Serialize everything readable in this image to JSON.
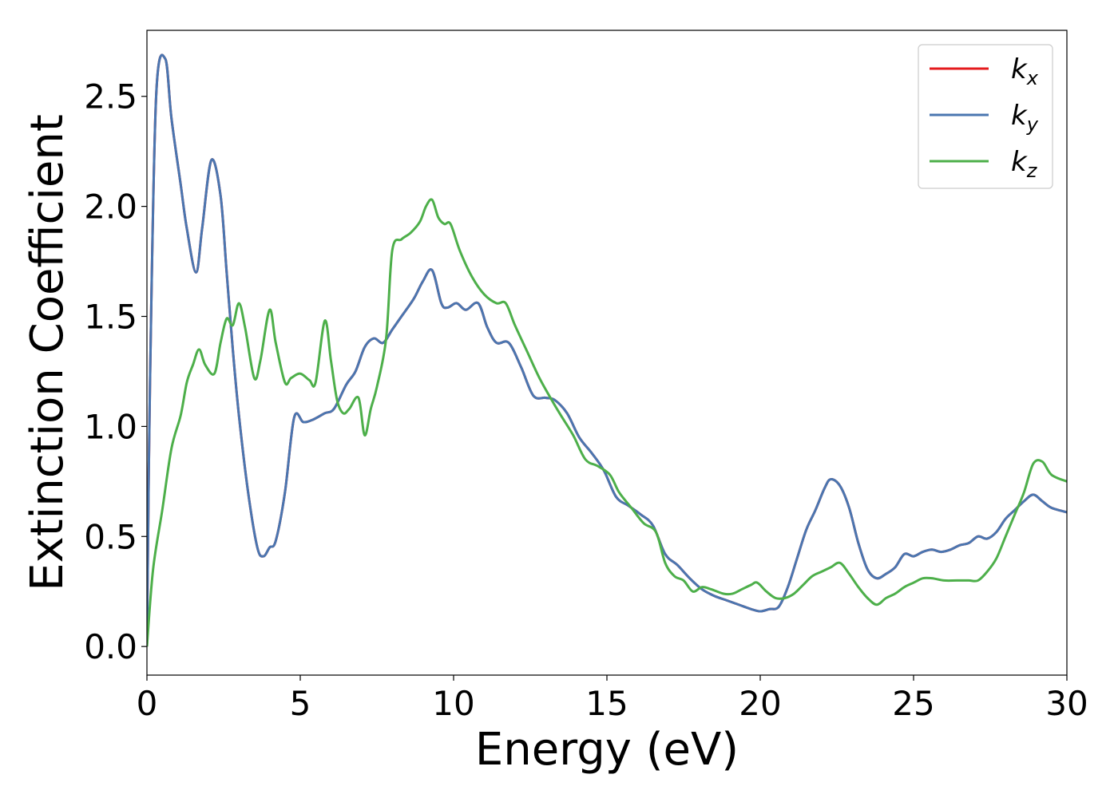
{
  "chart_data": {
    "type": "line",
    "xlabel": "Energy (eV)",
    "ylabel": "Extinction Coefficient",
    "xlim": [
      0,
      30
    ],
    "ylim": [
      -0.13,
      2.8
    ],
    "xticks": [
      0,
      5,
      10,
      15,
      20,
      25,
      30
    ],
    "xtick_labels": [
      "0",
      "5",
      "10",
      "15",
      "20",
      "25",
      "30"
    ],
    "yticks": [
      0.0,
      0.5,
      1.0,
      1.5,
      2.0,
      2.5
    ],
    "ytick_labels": [
      "0.0",
      "0.5",
      "1.0",
      "1.5",
      "2.0",
      "2.5"
    ],
    "grid": false,
    "legend_position": "top-right",
    "series": [
      {
        "name": "k",
        "subscript": "x",
        "color": "#e41a1c",
        "x": [
          0,
          0.1,
          0.3,
          0.6,
          0.8,
          1.1,
          1.3,
          1.6,
          1.8,
          2.1,
          2.4,
          2.6,
          2.8,
          3.0,
          3.3,
          3.6,
          3.8,
          4.0,
          4.2,
          4.5,
          4.8,
          5.1,
          5.4,
          5.8,
          6.1,
          6.5,
          6.8,
          7.1,
          7.4,
          7.7,
          8.0,
          8.3,
          8.7,
          9.0,
          9.3,
          9.6,
          9.8,
          10.1,
          10.4,
          10.8,
          11.1,
          11.4,
          11.8,
          12.2,
          12.6,
          13.0,
          13.3,
          13.7,
          14.1,
          14.5,
          14.9,
          15.3,
          15.7,
          16.1,
          16.5,
          16.9,
          17.3,
          17.7,
          18.1,
          18.5,
          18.9,
          19.3,
          19.7,
          20.0,
          20.3,
          20.6,
          20.9,
          21.2,
          21.5,
          21.8,
          22.1,
          22.3,
          22.6,
          22.9,
          23.2,
          23.5,
          23.8,
          24.1,
          24.4,
          24.7,
          25.0,
          25.3,
          25.6,
          25.9,
          26.2,
          26.5,
          26.8,
          27.1,
          27.4,
          27.7,
          28.0,
          28.3,
          28.6,
          28.9,
          29.2,
          29.5,
          30.0
        ],
        "y": [
          0,
          1.2,
          2.5,
          2.67,
          2.4,
          2.1,
          1.9,
          1.7,
          1.9,
          2.21,
          2.05,
          1.7,
          1.35,
          1.05,
          0.7,
          0.45,
          0.41,
          0.45,
          0.48,
          0.7,
          1.04,
          1.02,
          1.03,
          1.06,
          1.08,
          1.19,
          1.25,
          1.36,
          1.4,
          1.38,
          1.44,
          1.5,
          1.58,
          1.66,
          1.71,
          1.56,
          1.54,
          1.56,
          1.53,
          1.56,
          1.45,
          1.38,
          1.38,
          1.27,
          1.14,
          1.13,
          1.12,
          1.06,
          0.95,
          0.88,
          0.8,
          0.68,
          0.64,
          0.6,
          0.55,
          0.42,
          0.37,
          0.31,
          0.26,
          0.23,
          0.21,
          0.19,
          0.17,
          0.16,
          0.17,
          0.18,
          0.27,
          0.4,
          0.53,
          0.62,
          0.72,
          0.76,
          0.73,
          0.63,
          0.47,
          0.35,
          0.31,
          0.33,
          0.36,
          0.42,
          0.41,
          0.43,
          0.44,
          0.43,
          0.44,
          0.46,
          0.47,
          0.5,
          0.49,
          0.52,
          0.58,
          0.62,
          0.66,
          0.69,
          0.66,
          0.63,
          0.61
        ]
      },
      {
        "name": "k",
        "subscript": "y",
        "color": "#4a76b0",
        "x": [
          0,
          0.1,
          0.3,
          0.6,
          0.8,
          1.1,
          1.3,
          1.6,
          1.8,
          2.1,
          2.4,
          2.6,
          2.8,
          3.0,
          3.3,
          3.6,
          3.8,
          4.0,
          4.2,
          4.5,
          4.8,
          5.1,
          5.4,
          5.8,
          6.1,
          6.5,
          6.8,
          7.1,
          7.4,
          7.7,
          8.0,
          8.3,
          8.7,
          9.0,
          9.3,
          9.6,
          9.8,
          10.1,
          10.4,
          10.8,
          11.1,
          11.4,
          11.8,
          12.2,
          12.6,
          13.0,
          13.3,
          13.7,
          14.1,
          14.5,
          14.9,
          15.3,
          15.7,
          16.1,
          16.5,
          16.9,
          17.3,
          17.7,
          18.1,
          18.5,
          18.9,
          19.3,
          19.7,
          20.0,
          20.3,
          20.6,
          20.9,
          21.2,
          21.5,
          21.8,
          22.1,
          22.3,
          22.6,
          22.9,
          23.2,
          23.5,
          23.8,
          24.1,
          24.4,
          24.7,
          25.0,
          25.3,
          25.6,
          25.9,
          26.2,
          26.5,
          26.8,
          27.1,
          27.4,
          27.7,
          28.0,
          28.3,
          28.6,
          28.9,
          29.2,
          29.5,
          30.0
        ],
        "y": [
          0,
          1.2,
          2.5,
          2.67,
          2.4,
          2.1,
          1.9,
          1.7,
          1.9,
          2.21,
          2.05,
          1.7,
          1.35,
          1.05,
          0.7,
          0.45,
          0.41,
          0.45,
          0.48,
          0.7,
          1.04,
          1.02,
          1.03,
          1.06,
          1.08,
          1.19,
          1.25,
          1.36,
          1.4,
          1.38,
          1.44,
          1.5,
          1.58,
          1.66,
          1.71,
          1.56,
          1.54,
          1.56,
          1.53,
          1.56,
          1.45,
          1.38,
          1.38,
          1.27,
          1.14,
          1.13,
          1.12,
          1.06,
          0.95,
          0.88,
          0.8,
          0.68,
          0.64,
          0.6,
          0.55,
          0.42,
          0.37,
          0.31,
          0.26,
          0.23,
          0.21,
          0.19,
          0.17,
          0.16,
          0.17,
          0.18,
          0.27,
          0.4,
          0.53,
          0.62,
          0.72,
          0.76,
          0.73,
          0.63,
          0.47,
          0.35,
          0.31,
          0.33,
          0.36,
          0.42,
          0.41,
          0.43,
          0.44,
          0.43,
          0.44,
          0.46,
          0.47,
          0.5,
          0.49,
          0.52,
          0.58,
          0.62,
          0.66,
          0.69,
          0.66,
          0.63,
          0.61
        ]
      },
      {
        "name": "k",
        "subscript": "z",
        "color": "#4daf4a",
        "x": [
          0,
          0.2,
          0.5,
          0.8,
          1.1,
          1.3,
          1.5,
          1.7,
          1.9,
          2.2,
          2.4,
          2.6,
          2.8,
          3.0,
          3.2,
          3.5,
          3.7,
          4.0,
          4.2,
          4.5,
          4.7,
          5.0,
          5.3,
          5.5,
          5.8,
          6.0,
          6.2,
          6.4,
          6.6,
          6.9,
          7.1,
          7.3,
          7.5,
          7.8,
          8.0,
          8.3,
          8.6,
          8.9,
          9.1,
          9.3,
          9.5,
          9.7,
          9.9,
          10.2,
          10.6,
          11.0,
          11.4,
          11.7,
          12.0,
          12.4,
          12.8,
          13.2,
          13.5,
          13.9,
          14.3,
          14.7,
          15.1,
          15.4,
          15.8,
          16.2,
          16.6,
          16.9,
          17.2,
          17.5,
          17.8,
          18.1,
          18.4,
          18.8,
          19.1,
          19.4,
          19.7,
          19.9,
          20.2,
          20.5,
          20.8,
          21.1,
          21.4,
          21.7,
          22.0,
          22.3,
          22.6,
          22.9,
          23.2,
          23.5,
          23.8,
          24.1,
          24.4,
          24.7,
          25.0,
          25.3,
          25.6,
          26.0,
          26.4,
          26.8,
          27.1,
          27.4,
          27.7,
          28.0,
          28.3,
          28.6,
          28.9,
          29.2,
          29.5,
          30.0
        ],
        "y": [
          0,
          0.35,
          0.62,
          0.9,
          1.05,
          1.2,
          1.28,
          1.35,
          1.28,
          1.24,
          1.38,
          1.49,
          1.46,
          1.56,
          1.45,
          1.22,
          1.3,
          1.53,
          1.38,
          1.2,
          1.22,
          1.24,
          1.21,
          1.2,
          1.48,
          1.3,
          1.12,
          1.06,
          1.08,
          1.13,
          0.96,
          1.08,
          1.18,
          1.4,
          1.8,
          1.85,
          1.88,
          1.93,
          2.0,
          2.03,
          1.95,
          1.92,
          1.92,
          1.8,
          1.68,
          1.6,
          1.56,
          1.56,
          1.46,
          1.34,
          1.22,
          1.12,
          1.05,
          0.96,
          0.85,
          0.82,
          0.78,
          0.7,
          0.63,
          0.56,
          0.52,
          0.38,
          0.32,
          0.3,
          0.25,
          0.27,
          0.26,
          0.24,
          0.24,
          0.26,
          0.28,
          0.29,
          0.25,
          0.22,
          0.22,
          0.24,
          0.28,
          0.32,
          0.34,
          0.36,
          0.38,
          0.33,
          0.27,
          0.22,
          0.19,
          0.22,
          0.24,
          0.27,
          0.29,
          0.31,
          0.31,
          0.3,
          0.3,
          0.3,
          0.3,
          0.34,
          0.4,
          0.5,
          0.6,
          0.7,
          0.83,
          0.84,
          0.78,
          0.75
        ]
      }
    ]
  }
}
